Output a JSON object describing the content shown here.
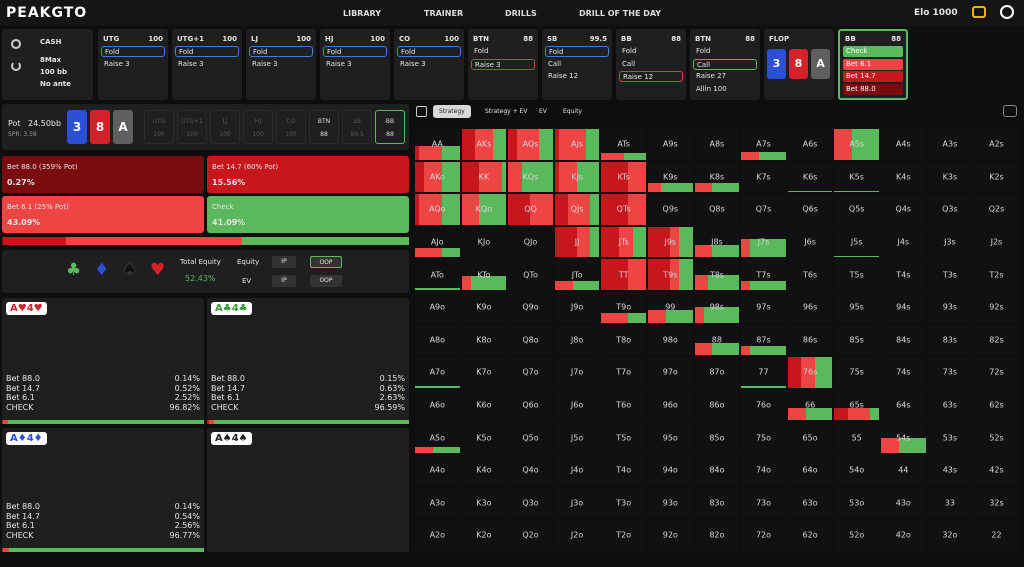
{
  "nav": {
    "logo": "PEAKGTO",
    "links": [
      "LIBRARY",
      "TRAINER",
      "DRILLS",
      "DRILL OF THE DAY"
    ],
    "elo": "Elo 1000"
  },
  "game": {
    "type": "CASH",
    "lines": [
      "8Max",
      "100 bb",
      "No ante"
    ]
  },
  "positions": [
    {
      "name": "UTG",
      "stack": "100",
      "actions": [
        "Fold",
        "Raise 3"
      ],
      "highlight": {
        "index": 0,
        "color": "#3b7dd8"
      }
    },
    {
      "name": "UTG+1",
      "stack": "100",
      "actions": [
        "Fold",
        "Raise 3"
      ],
      "highlight": {
        "index": 0,
        "color": "#3b7dd8"
      }
    },
    {
      "name": "LJ",
      "stack": "100",
      "actions": [
        "Fold",
        "Raise 3"
      ],
      "highlight": {
        "index": 0,
        "color": "#3b7dd8"
      }
    },
    {
      "name": "HJ",
      "stack": "100",
      "actions": [
        "Fold",
        "Raise 3"
      ],
      "highlight": {
        "index": 0,
        "color": "#3b7dd8"
      }
    },
    {
      "name": "CO",
      "stack": "100",
      "actions": [
        "Fold",
        "Raise 3"
      ],
      "highlight": {
        "index": 0,
        "color": "#3b7dd8"
      }
    },
    {
      "name": "BTN",
      "stack": "88",
      "actions": [
        "Fold",
        "Raise 3"
      ],
      "highlight": {
        "index": 1,
        "color": "#e03a3a"
      }
    },
    {
      "name": "SB",
      "stack": "99.5",
      "actions": [
        "Fold",
        "Call",
        "Raise 12"
      ],
      "highlight": {
        "index": 0,
        "color": "#3b7dd8"
      }
    },
    {
      "name": "BB",
      "stack": "88",
      "actions": [
        "Fold",
        "Call",
        "Raise 12"
      ],
      "highlight": {
        "index": 2,
        "color": "#e03a3a"
      }
    },
    {
      "name": "BTN",
      "stack": "88",
      "actions": [
        "Fold",
        "Call",
        "Raise 27",
        "Allin 100"
      ],
      "highlight": {
        "index": 1,
        "color": "#5cb85c"
      }
    }
  ],
  "flop": {
    "label": "FLOP",
    "cards": [
      {
        "rank": "3",
        "color": "#2c4fd6"
      },
      {
        "rank": "8",
        "color": "#d3222a"
      },
      {
        "rank": "A",
        "color": "#5f5f5f"
      }
    ]
  },
  "current": {
    "name": "BB",
    "stack": "88",
    "actions": [
      "Check",
      "Bet 6.1",
      "Bet 14.7",
      "Bet 88.0"
    ],
    "fills": [
      "#5cb85c",
      "#ef4444",
      "#c8161d",
      "#7a0c10"
    ]
  },
  "board": {
    "pot": "Pot",
    "pot_value": "24.50bb",
    "spr": "SPR: 3.59",
    "seats": [
      {
        "name": "UTG",
        "stack": "100"
      },
      {
        "name": "UTG+1",
        "stack": "100"
      },
      {
        "name": "LJ",
        "stack": "100"
      },
      {
        "name": "HJ",
        "stack": "100"
      },
      {
        "name": "CO",
        "stack": "100"
      },
      {
        "name": "BTN",
        "stack": "88"
      },
      {
        "name": "SB",
        "stack": "99.5"
      },
      {
        "name": "BB",
        "stack": "88"
      }
    ]
  },
  "actions": [
    {
      "label": "Bet 88.0 (359% Pot)",
      "frequency": {
        "value": 0.27,
        "label": "0.27%"
      },
      "color": "#7a0c10"
    },
    {
      "label": "Bet 14.7 (60% Pot)",
      "frequency": {
        "value": 15.56,
        "label": "15.56%"
      },
      "color": "#c8161d"
    },
    {
      "label": "Bet 6.1 (25% Pot)",
      "frequency": {
        "value": 43.09,
        "label": "43.09%"
      },
      "color": "#ef4444"
    },
    {
      "label": "Check",
      "frequency": {
        "value": 41.09,
        "label": "41.09%"
      },
      "color": "#5cb85c"
    }
  ],
  "equity": {
    "suits": [
      {
        "symbol": "♣",
        "color": "#5cb85c"
      },
      {
        "symbol": "♦",
        "color": "#2c4fd6"
      },
      {
        "symbol": "♠",
        "color": "#111111"
      },
      {
        "symbol": "♥",
        "color": "#d3222a"
      }
    ],
    "total_label": "Total Equity",
    "total": "52.43%",
    "equity_label": "Equity",
    "ev_label": "EV",
    "toggles": [
      "IP",
      "OOP"
    ]
  },
  "combos": [
    {
      "hand": "A♥4♥",
      "color": "#d3222a",
      "rows": [
        {
          "action": "Bet 88.0",
          "freq": {
            "value": 0.14,
            "label": "0.14%"
          }
        },
        {
          "action": "Bet 14.7",
          "freq": {
            "value": 0.52,
            "label": "0.52%"
          }
        },
        {
          "action": "Bet 6.1",
          "freq": {
            "value": 2.52,
            "label": "2.52%"
          }
        },
        {
          "action": "CHECK",
          "freq": {
            "value": 96.82,
            "label": "96.82%"
          }
        }
      ]
    },
    {
      "hand": "A♣4♣",
      "color": "#3a9a3a",
      "rows": [
        {
          "action": "Bet 88.0",
          "freq": {
            "value": 0.15,
            "label": "0.15%"
          }
        },
        {
          "action": "Bet 14.7",
          "freq": {
            "value": 0.63,
            "label": "0.63%"
          }
        },
        {
          "action": "Bet 6.1",
          "freq": {
            "value": 2.63,
            "label": "2.63%"
          }
        },
        {
          "action": "CHECK",
          "freq": {
            "value": 96.59,
            "label": "96.59%"
          }
        }
      ]
    },
    {
      "hand": "A♦4♦",
      "color": "#2c4fd6",
      "rows": [
        {
          "action": "Bet 88.0",
          "freq": {
            "value": 0.14,
            "label": "0.14%"
          }
        },
        {
          "action": "Bet 14.7",
          "freq": {
            "value": 0.54,
            "label": "0.54%"
          }
        },
        {
          "action": "Bet 6.1",
          "freq": {
            "value": 2.56,
            "label": "2.56%"
          }
        },
        {
          "action": "CHECK",
          "freq": {
            "value": 96.77,
            "label": "96.77%"
          }
        }
      ]
    },
    {
      "hand": "A♠4♠",
      "color": "#222222",
      "rows": []
    }
  ],
  "tabs": {
    "items": [
      "Strategy",
      "Strategy + EV",
      "EV",
      "Equity"
    ],
    "active": 0
  },
  "grid": {
    "rows": [
      [
        "AA",
        "AKs",
        "AQs",
        "AJs",
        "ATs",
        "A9s",
        "A8s",
        "A7s",
        "A6s",
        "A5s",
        "A4s",
        "A3s",
        "A2s"
      ],
      [
        "AKo",
        "KK",
        "KQs",
        "KJs",
        "KTs",
        "K9s",
        "K8s",
        "K7s",
        "K6s",
        "K5s",
        "K4s",
        "K3s",
        "K2s"
      ],
      [
        "AQo",
        "KQo",
        "QQ",
        "QJs",
        "QTs",
        "Q9s",
        "Q8s",
        "Q7s",
        "Q6s",
        "Q5s",
        "Q4s",
        "Q3s",
        "Q2s"
      ],
      [
        "AJo",
        "KJo",
        "QJo",
        "JJ",
        "JTs",
        "J9s",
        "J8s",
        "J7s",
        "J6s",
        "J5s",
        "J4s",
        "J3s",
        "J2s"
      ],
      [
        "ATo",
        "KTo",
        "QTo",
        "JTo",
        "TT",
        "T9s",
        "T8s",
        "T7s",
        "T6s",
        "T5s",
        "T4s",
        "T3s",
        "T2s"
      ],
      [
        "A9o",
        "K9o",
        "Q9o",
        "J9o",
        "T9o",
        "99",
        "98s",
        "97s",
        "96s",
        "95s",
        "94s",
        "93s",
        "92s"
      ],
      [
        "A8o",
        "K8o",
        "Q8o",
        "J8o",
        "T8o",
        "98o",
        "88",
        "87s",
        "86s",
        "85s",
        "84s",
        "83s",
        "82s"
      ],
      [
        "A7o",
        "K7o",
        "Q7o",
        "J7o",
        "T7o",
        "97o",
        "87o",
        "77",
        "76s",
        "75s",
        "74s",
        "73s",
        "72s"
      ],
      [
        "A6o",
        "K6o",
        "Q6o",
        "J6o",
        "T6o",
        "96o",
        "86o",
        "76o",
        "66",
        "65s",
        "64s",
        "63s",
        "62s"
      ],
      [
        "A5o",
        "K5o",
        "Q5o",
        "J5o",
        "T5o",
        "95o",
        "85o",
        "75o",
        "65o",
        "55",
        "54s",
        "53s",
        "52s"
      ],
      [
        "A4o",
        "K4o",
        "Q4o",
        "J4o",
        "T4o",
        "94o",
        "84o",
        "74o",
        "64o",
        "54o",
        "44",
        "43s",
        "42s"
      ],
      [
        "A3o",
        "K3o",
        "Q3o",
        "J3o",
        "T3o",
        "93o",
        "83o",
        "73o",
        "63o",
        "53o",
        "43o",
        "33",
        "32s"
      ],
      [
        "A2o",
        "K2o",
        "Q2o",
        "J2o",
        "T2o",
        "92o",
        "82o",
        "72o",
        "62o",
        "52o",
        "42o",
        "32o",
        "22"
      ]
    ],
    "strategy": {
      "AA": {
        "weight": 45,
        "mix": [
          0,
          10,
          50,
          40
        ]
      },
      "AKs": {
        "weight": 100,
        "mix": [
          0,
          30,
          40,
          30
        ]
      },
      "AQs": {
        "weight": 100,
        "mix": [
          0,
          20,
          50,
          30
        ]
      },
      "AJs": {
        "weight": 100,
        "mix": [
          0,
          10,
          60,
          30
        ]
      },
      "ATs": {
        "weight": 20,
        "mix": [
          0,
          0,
          50,
          50
        ]
      },
      "A7s": {
        "weight": 25,
        "mix": [
          0,
          0,
          40,
          60
        ]
      },
      "A5s": {
        "weight": 100,
        "mix": [
          0,
          0,
          40,
          60
        ]
      },
      "AKo": {
        "weight": 100,
        "mix": [
          0,
          20,
          40,
          40
        ]
      },
      "KK": {
        "weight": 100,
        "mix": [
          0,
          40,
          50,
          10
        ]
      },
      "KQs": {
        "weight": 100,
        "mix": [
          0,
          0,
          30,
          70
        ]
      },
      "KJs": {
        "weight": 100,
        "mix": [
          0,
          10,
          40,
          50
        ]
      },
      "KTs": {
        "weight": 100,
        "mix": [
          0,
          60,
          40,
          0
        ]
      },
      "K9s": {
        "weight": 30,
        "mix": [
          0,
          0,
          30,
          70
        ]
      },
      "K8s": {
        "weight": 30,
        "mix": [
          0,
          0,
          40,
          60
        ]
      },
      "K6s": {
        "weight": 5,
        "mix": [
          0,
          0,
          0,
          100
        ]
      },
      "K5s": {
        "weight": 5,
        "mix": [
          0,
          0,
          0,
          100
        ]
      },
      "AQo": {
        "weight": 100,
        "mix": [
          0,
          10,
          50,
          40
        ]
      },
      "KQo": {
        "weight": 100,
        "mix": [
          0,
          0,
          40,
          60
        ]
      },
      "QQ": {
        "weight": 100,
        "mix": [
          0,
          50,
          50,
          0
        ]
      },
      "QJs": {
        "weight": 100,
        "mix": [
          0,
          30,
          50,
          20
        ]
      },
      "QTs": {
        "weight": 100,
        "mix": [
          0,
          60,
          40,
          0
        ]
      },
      "AJo": {
        "weight": 30,
        "mix": [
          0,
          0,
          60,
          40
        ]
      },
      "JJ": {
        "weight": 100,
        "mix": [
          0,
          50,
          30,
          20
        ]
      },
      "JTs": {
        "weight": 100,
        "mix": [
          0,
          40,
          30,
          30
        ]
      },
      "J9s": {
        "weight": 100,
        "mix": [
          0,
          50,
          20,
          30
        ]
      },
      "J8s": {
        "weight": 40,
        "mix": [
          0,
          0,
          40,
          60
        ]
      },
      "J7s": {
        "weight": 60,
        "mix": [
          0,
          0,
          20,
          80
        ]
      },
      "J5s": {
        "weight": 5,
        "mix": [
          0,
          0,
          0,
          100
        ]
      },
      "ATo": {
        "weight": 5,
        "mix": [
          0,
          0,
          0,
          100
        ]
      },
      "KTo": {
        "weight": 45,
        "mix": [
          0,
          0,
          20,
          80
        ]
      },
      "JTo": {
        "weight": 30,
        "mix": [
          0,
          0,
          40,
          60
        ]
      },
      "TT": {
        "weight": 100,
        "mix": [
          0,
          60,
          40,
          0
        ]
      },
      "T9s": {
        "weight": 100,
        "mix": [
          0,
          50,
          20,
          30
        ]
      },
      "T8s": {
        "weight": 50,
        "mix": [
          0,
          0,
          30,
          70
        ]
      },
      "T7s": {
        "weight": 30,
        "mix": [
          0,
          0,
          20,
          80
        ]
      },
      "T9o": {
        "weight": 30,
        "mix": [
          0,
          0,
          60,
          40
        ]
      },
      "99": {
        "weight": 40,
        "mix": [
          0,
          0,
          40,
          60
        ]
      },
      "98s": {
        "weight": 50,
        "mix": [
          0,
          0,
          20,
          80
        ]
      },
      "88": {
        "weight": 40,
        "mix": [
          0,
          0,
          40,
          60
        ]
      },
      "87s": {
        "weight": 30,
        "mix": [
          0,
          0,
          20,
          80
        ]
      },
      "A7o": {
        "weight": 5,
        "mix": [
          0,
          0,
          0,
          100
        ]
      },
      "77": {
        "weight": 5,
        "mix": [
          0,
          0,
          0,
          100
        ]
      },
      "76s": {
        "weight": 100,
        "mix": [
          0,
          30,
          30,
          40
        ]
      },
      "66": {
        "weight": 40,
        "mix": [
          0,
          0,
          40,
          60
        ]
      },
      "65s": {
        "weight": 40,
        "mix": [
          0,
          30,
          50,
          20
        ]
      },
      "A5o": {
        "weight": 20,
        "mix": [
          0,
          0,
          40,
          60
        ]
      },
      "54s": {
        "weight": 50,
        "mix": [
          0,
          0,
          40,
          60
        ]
      }
    }
  }
}
